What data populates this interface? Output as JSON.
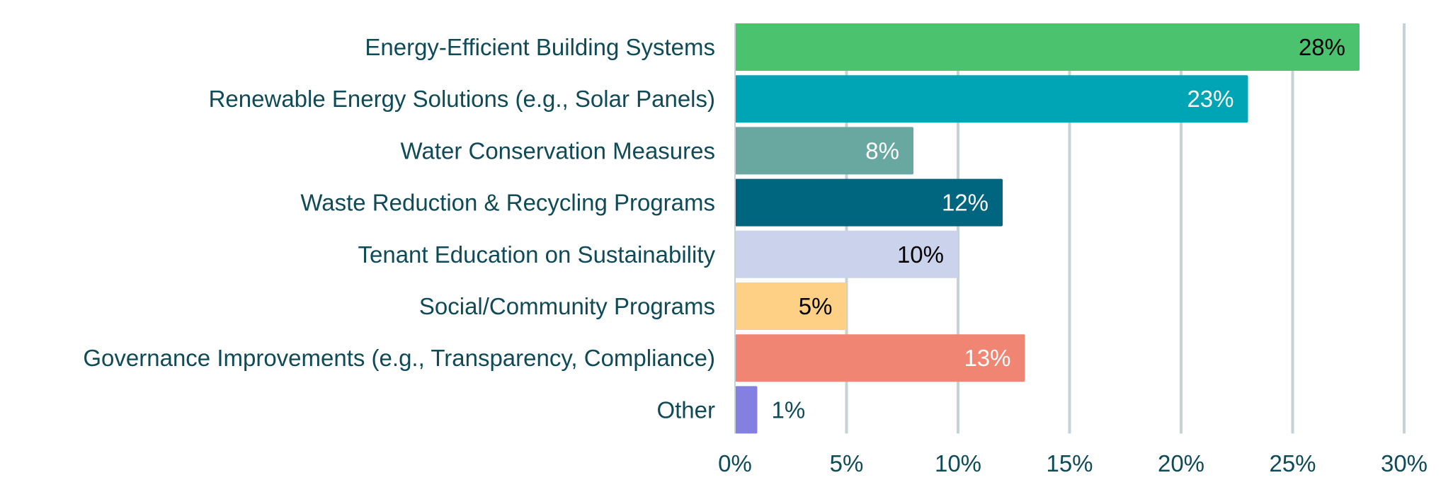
{
  "chart_data": {
    "type": "bar",
    "orientation": "horizontal",
    "title": "",
    "xlabel": "",
    "ylabel": "",
    "xlim": [
      0,
      30
    ],
    "grid": true,
    "categories": [
      "Energy-Efficient Building Systems",
      "Renewable Energy Solutions (e.g., Solar Panels)",
      "Water Conservation Measures",
      "Waste Reduction & Recycling Programs",
      "Tenant Education on Sustainability",
      "Social/Community Programs",
      "Governance Improvements (e.g., Transparency, Compliance)",
      "Other"
    ],
    "values": [
      28,
      23,
      8,
      12,
      10,
      5,
      13,
      1
    ],
    "value_labels": [
      "28%",
      "23%",
      "8%",
      "12%",
      "10%",
      "5%",
      "13%",
      "1%"
    ],
    "bar_colors": [
      "#4bc26d",
      "#00a5b5",
      "#69a8a0",
      "#00657f",
      "#cbd2ec",
      "#fdd086",
      "#f08573",
      "#8380e2"
    ],
    "label_colors": [
      "#000000",
      "#ffffff",
      "#ffffff",
      "#ffffff",
      "#000000",
      "#000000",
      "#ffffff",
      "#0f4a57"
    ],
    "x_ticks": [
      0,
      5,
      10,
      15,
      20,
      25,
      30
    ],
    "x_tick_labels": [
      "0%",
      "5%",
      "10%",
      "15%",
      "20%",
      "25%",
      "30%"
    ]
  }
}
